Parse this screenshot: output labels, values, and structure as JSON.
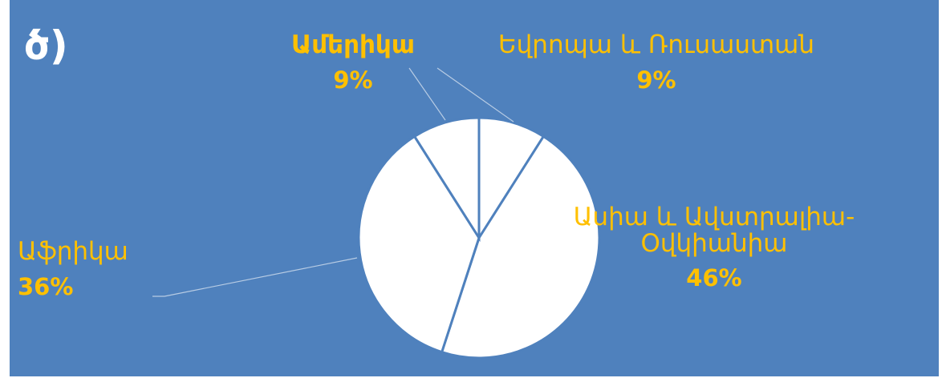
{
  "chart_data": {
    "type": "pie",
    "title": "ծ)",
    "categories": [
      "Եվրոպա և Ռուսաստան",
      "Ասիա և Ավստրալիա-Օվկիանիա",
      "Աֆրիկա",
      "Ամերիկա"
    ],
    "values": [
      9,
      46,
      36,
      9
    ],
    "value_labels": [
      "9%",
      "46%",
      "36%",
      "9%"
    ],
    "color": "#ffffff"
  }
}
